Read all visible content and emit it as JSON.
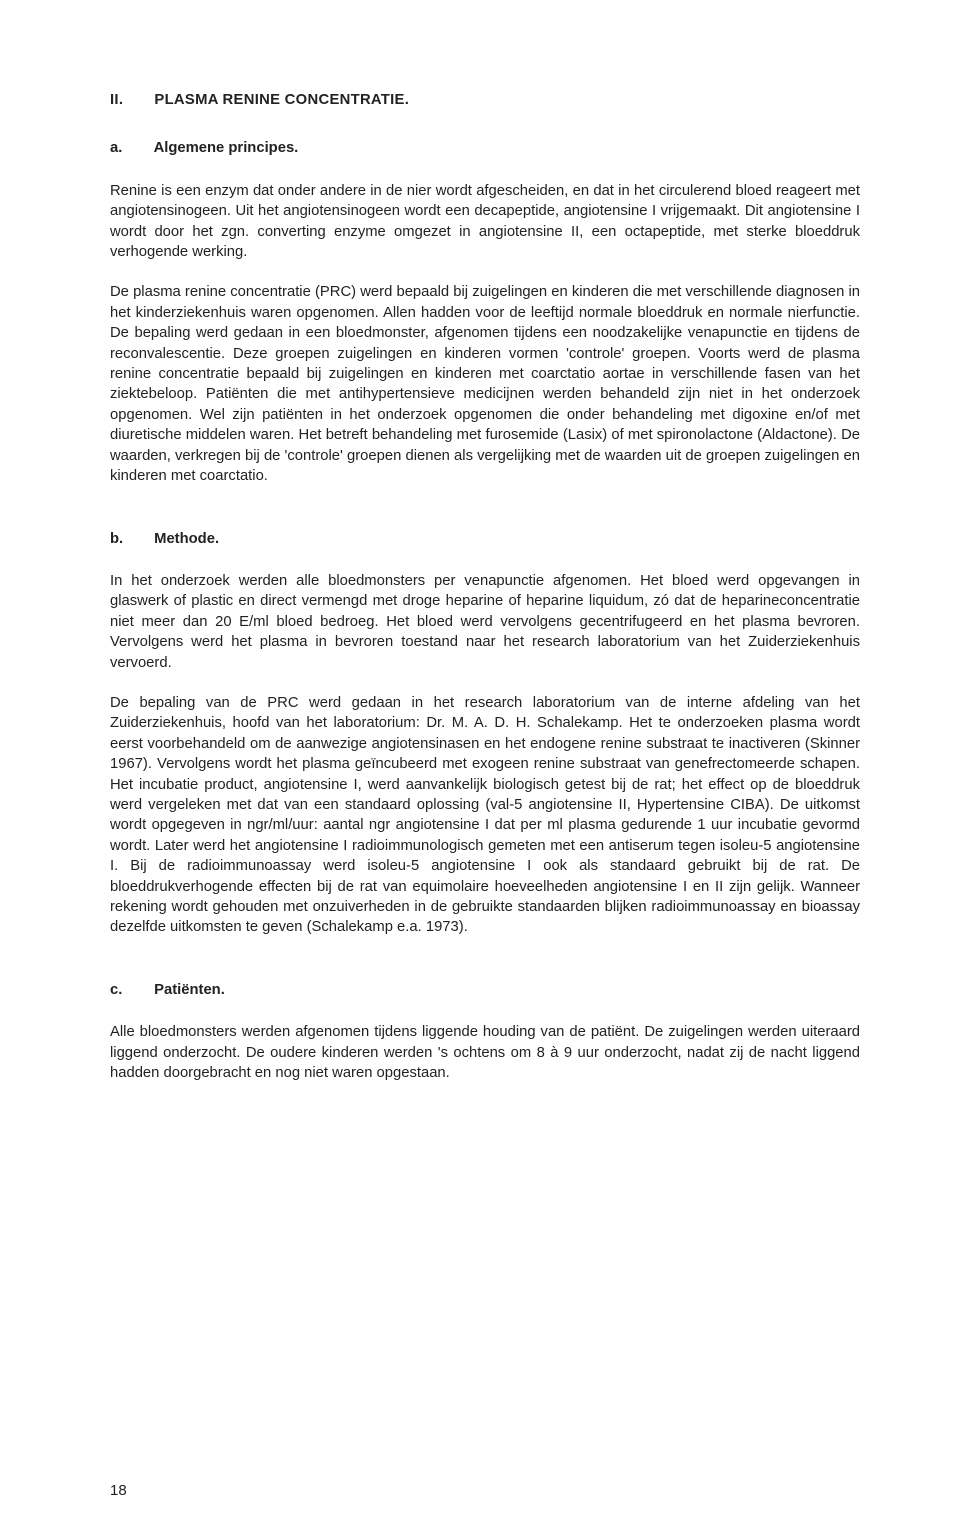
{
  "heading": {
    "number": "II.",
    "title": "PLASMA RENINE CONCENTRATIE."
  },
  "section_a": {
    "letter": "a.",
    "title": "Algemene principes.",
    "para1": "Renine is een enzym dat onder andere in de nier wordt afgescheiden, en dat in het circulerend bloed reageert met angiotensinogeen. Uit het angiotensinogeen wordt een decapeptide, angiotensine I vrijgemaakt. Dit angiotensine I wordt door het zgn. converting enzyme omgezet in angiotensine II, een octapeptide, met sterke bloeddruk verhogende werking.",
    "para2": "De plasma renine concentratie (PRC) werd bepaald bij zuigelingen en kinderen die met verschillende diagnosen in het kinderziekenhuis waren opgenomen. Allen hadden voor de leeftijd normale bloeddruk en normale nierfunctie. De bepaling werd gedaan in een bloedmonster, afgenomen tijdens een noodzakelijke venapunctie en tijdens de reconvalescentie. Deze groepen zuigelingen en kinderen vormen 'controle' groepen. Voorts werd de plasma renine concentratie bepaald bij zuigelingen en kinderen met coarctatio aortae in verschillende fasen van het ziektebeloop. Patiënten die met antihypertensieve medicijnen werden behandeld zijn niet in het onderzoek opgenomen. Wel zijn patiënten in het onderzoek opgenomen die onder behandeling met digoxine en/of met diuretische middelen waren. Het betreft behandeling met furosemide (Lasix) of met spironolactone (Aldactone). De waarden, verkregen bij de 'controle' groepen dienen als vergelijking met de waarden uit de groepen zuigelingen en kinderen met coarctatio."
  },
  "section_b": {
    "letter": "b.",
    "title": "Methode.",
    "para1": "In het onderzoek werden alle bloedmonsters per venapunctie afgenomen. Het bloed werd opgevangen in glaswerk of plastic en direct vermengd met droge heparine of heparine liquidum, zó dat de heparineconcentratie niet meer dan 20 E/ml bloed bedroeg. Het bloed werd vervolgens gecentrifugeerd en het plasma bevroren. Vervolgens werd het plasma in bevroren toestand naar het research laboratorium van het Zuiderziekenhuis vervoerd.",
    "para2": "De bepaling van de PRC werd gedaan in het research laboratorium van de interne afdeling van het Zuiderziekenhuis, hoofd van het laboratorium: Dr. M. A. D. H. Schalekamp. Het te onderzoeken plasma wordt eerst voorbehandeld om de aanwezige angiotensinasen en het endogene renine substraat te inactiveren (Skinner 1967). Vervolgens wordt het plasma geïncubeerd met exogeen renine substraat van genefrectomeerde schapen. Het incubatie product, angiotensine I, werd aanvankelijk biologisch getest bij de rat; het effect op de bloeddruk werd vergeleken met dat van een standaard oplossing (val-5 angiotensine II, Hypertensine CIBA). De uitkomst wordt opgegeven in ngr/ml/uur: aantal ngr angiotensine I dat per ml plasma gedurende 1 uur incubatie gevormd wordt. Later werd het angiotensine I radioimmunologisch gemeten met een antiserum tegen isoleu-5 angiotensine I. Bij de radioimmunoassay werd isoleu-5 angiotensine I ook als standaard gebruikt bij de rat. De bloeddrukverhogende effecten bij de rat van equimolaire hoeveelheden angiotensine I en II zijn gelijk. Wanneer rekening wordt gehouden met onzuiverheden in de gebruikte standaarden blijken radioimmunoassay en bioassay dezelfde uitkomsten te geven (Schalekamp e.a. 1973)."
  },
  "section_c": {
    "letter": "c.",
    "title": "Patiënten.",
    "para1": "Alle bloedmonsters werden afgenomen tijdens liggende houding van de patiënt. De zuigelingen werden uiteraard liggend onderzocht. De oudere kinderen werden 's ochtens om 8 à 9 uur onderzocht, nadat zij de nacht liggend hadden doorgebracht en nog niet waren opgestaan."
  },
  "page_number": "18"
}
